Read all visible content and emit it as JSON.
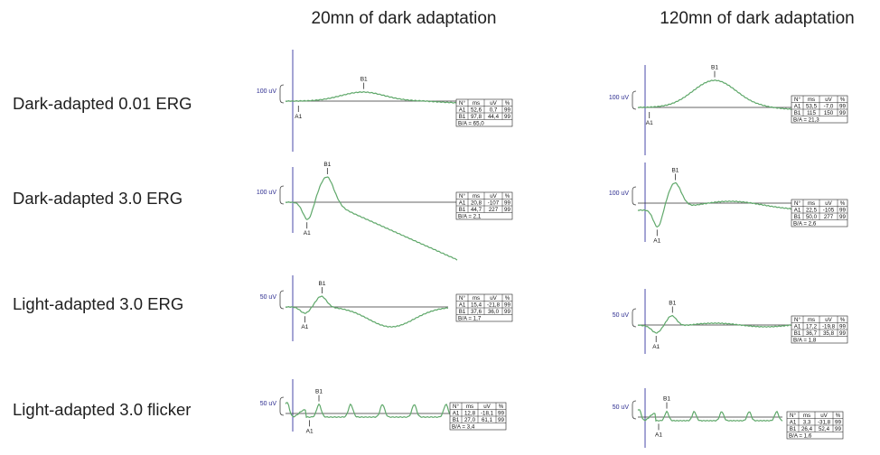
{
  "chart_data": {
    "type": "line",
    "columns": [
      "20mn of dark adaptation",
      "120mn of dark adaptation"
    ],
    "rows": [
      "Dark-adapted 0.01 ERG",
      "Dark-adapted 3.0 ERG",
      "Light-adapted 3.0 ERG",
      "Light-adapted 3.0 flicker"
    ],
    "table_headers": [
      "N°",
      "ms",
      "uV",
      "%"
    ],
    "panels": [
      {
        "row": 0,
        "col": 0,
        "kind": "scotopic",
        "scale_label": "100 uV",
        "markers": [
          "A1",
          "B1"
        ],
        "table": [
          [
            "A1",
            "52,6",
            "0,7",
            "99"
          ],
          [
            "B1",
            "97,8",
            "44,4",
            "99"
          ]
        ],
        "ratio": "B/A = 65,0"
      },
      {
        "row": 0,
        "col": 1,
        "kind": "scotopic",
        "scale_label": "100 uV",
        "markers": [
          "A1",
          "B1"
        ],
        "table": [
          [
            "A1",
            "53,5",
            "-7,0",
            "99"
          ],
          [
            "B1",
            "115",
            "150",
            "99"
          ]
        ],
        "ratio": "B/A = 21,3"
      },
      {
        "row": 1,
        "col": 0,
        "kind": "mixed",
        "scale_label": "100 uV",
        "markers": [
          "A1",
          "B1"
        ],
        "table": [
          [
            "A1",
            "20,8",
            "-107",
            "99"
          ],
          [
            "B1",
            "44,7",
            "227",
            "99"
          ]
        ],
        "ratio": "B/A = 2,1"
      },
      {
        "row": 1,
        "col": 1,
        "kind": "mixed",
        "scale_label": "100 uV",
        "markers": [
          "A1",
          "B1"
        ],
        "table": [
          [
            "A1",
            "22,5",
            "-105",
            "99"
          ],
          [
            "B1",
            "50,0",
            "277",
            "99"
          ]
        ],
        "ratio": "B/A = 2,6"
      },
      {
        "row": 2,
        "col": 0,
        "kind": "photopic",
        "scale_label": "50 uV",
        "markers": [
          "A1",
          "B1"
        ],
        "table": [
          [
            "A1",
            "15,4",
            "-21,8",
            "99"
          ],
          [
            "B1",
            "37,6",
            "36,0",
            "99"
          ]
        ],
        "ratio": "B/A = 1,7"
      },
      {
        "row": 2,
        "col": 1,
        "kind": "photopic",
        "scale_label": "50 uV",
        "markers": [
          "A1",
          "B1"
        ],
        "table": [
          [
            "A1",
            "17,2",
            "-19,8",
            "99"
          ],
          [
            "B1",
            "36,7",
            "35,8",
            "99"
          ]
        ],
        "ratio": "B/A = 1,8"
      },
      {
        "row": 3,
        "col": 0,
        "kind": "flicker",
        "scale_label": "50 uV",
        "markers": [
          "A1",
          "B1"
        ],
        "table": [
          [
            "A1",
            "12,8",
            "-18,1",
            "99"
          ],
          [
            "B1",
            "27,0",
            "61,1",
            "99"
          ]
        ],
        "ratio": "B/A = 3,4"
      },
      {
        "row": 3,
        "col": 1,
        "kind": "flicker",
        "scale_label": "50 uV",
        "markers": [
          "A1",
          "B1"
        ],
        "table": [
          [
            "A1",
            "3,3",
            "-31,8",
            "99"
          ],
          [
            "B1",
            "26,4",
            "52,4",
            "99"
          ]
        ],
        "ratio": "B/A = 1,6"
      }
    ]
  },
  "colors": {
    "trace": "#5fa86a",
    "axis": "#4a4aa8",
    "baseline": "#333333",
    "text": "#1f1f1f"
  }
}
